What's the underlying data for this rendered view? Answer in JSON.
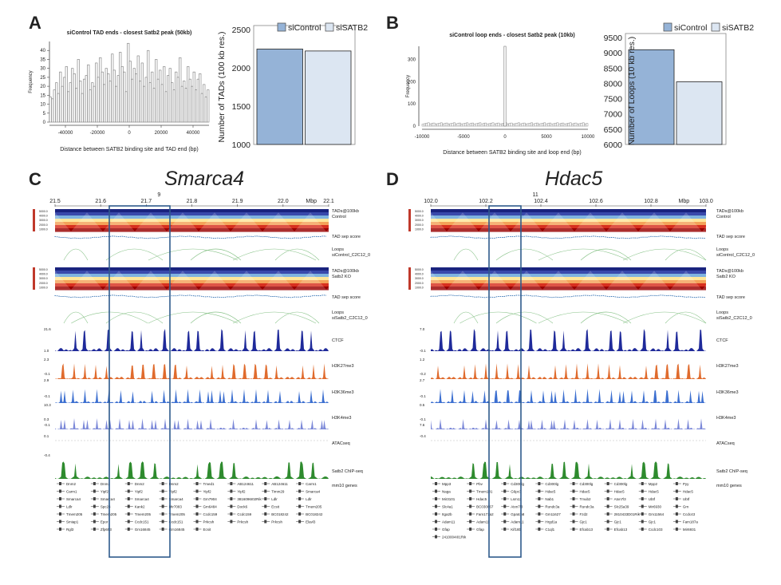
{
  "panels": {
    "A": "A",
    "B": "B",
    "C": "C",
    "D": "D"
  },
  "titles": {
    "C": "Smarca4",
    "D": "Hdac5"
  },
  "chart_data": [
    {
      "type": "bar",
      "id": "A-hist",
      "title": "siControl TAD ends - closest Satb2 peak (50kb)",
      "xlabel": "Distance between SATB2 binding site and TAD end (bp)",
      "ylabel": "Frequency",
      "xlim": [
        -50000,
        50000
      ],
      "ylim": [
        0,
        45
      ],
      "xticks": [
        -40000,
        -20000,
        0,
        20000,
        40000
      ],
      "yticks": [
        0,
        5,
        10,
        15,
        20,
        25,
        30,
        35,
        40
      ],
      "values": [
        14,
        13,
        18,
        22,
        16,
        28,
        20,
        25,
        31,
        17,
        22,
        30,
        27,
        19,
        35,
        23,
        16,
        24,
        26,
        32,
        18,
        22,
        20,
        33,
        25,
        36,
        28,
        21,
        30,
        27,
        23,
        38,
        29,
        20,
        26,
        39,
        31,
        28,
        17,
        44,
        34,
        24,
        30,
        27,
        37,
        23,
        33,
        20,
        25,
        40,
        22,
        28,
        19,
        35,
        24,
        29,
        21,
        31,
        17,
        26,
        30,
        22,
        18,
        28,
        25,
        36,
        20,
        23,
        19,
        31,
        24,
        20,
        28,
        18,
        24,
        27,
        16,
        21,
        14,
        18
      ]
    },
    {
      "type": "bar",
      "id": "A-bars",
      "ylabel": "Number of TADs (100 kb res.)",
      "categories": [
        "siControl",
        "siSATB2"
      ],
      "values": [
        2245,
        2220
      ],
      "ylim": [
        1000,
        2500
      ],
      "yticks": [
        1000,
        1500,
        2000,
        2500
      ],
      "colors": [
        "#95b3d7",
        "#dce6f2"
      ]
    },
    {
      "type": "bar",
      "id": "B-hist",
      "title": "siControl loop ends - closest Satb2 peak (10kb)",
      "xlabel": "Distance between SATB2 binding site and loop end (bp)",
      "ylabel": "Frequency",
      "xlim": [
        -10000,
        10000
      ],
      "ylim": [
        0,
        360
      ],
      "xticks": [
        -10000,
        -5000,
        0,
        5000,
        10000
      ],
      "yticks": [
        0,
        100,
        200,
        300
      ],
      "spike": {
        "x": 0,
        "value": 360
      },
      "baseline": 12
    },
    {
      "type": "bar",
      "id": "B-bars",
      "ylabel": "Number of Loops (10 kb res.)",
      "categories": [
        "siControl",
        "siSATB2"
      ],
      "values": [
        9100,
        8050
      ],
      "ylim": [
        6000,
        9500
      ],
      "yticks": [
        6000,
        6500,
        7000,
        7500,
        8000,
        8500,
        9000,
        9500
      ],
      "colors": [
        "#95b3d7",
        "#dce6f2"
      ]
    }
  ],
  "tracksC": {
    "axis": {
      "ticks": [
        "21.5",
        "21.6",
        "21.7",
        "21.8",
        "21.9",
        "22.0",
        "22.1"
      ],
      "unit": "Mbp",
      "chrom": "9"
    },
    "tad_scale": [
      "5000.0",
      "4000.0",
      "3000.0",
      "2000.0",
      "1000.0"
    ],
    "labels": [
      "TADs@100kb\nControl",
      "TAD sep score",
      "Loops\nsiControl_C2C12_0",
      "TADs@100kb\nSatb2 KO",
      "TAD sep score",
      "Loops\nsiSatb2_C2C12_0",
      "CTCF",
      "H3K27me3",
      "H3K36me3",
      "H3K4me3",
      "ATACseq",
      "Satb2 ChIP-seq",
      "mm10 genes"
    ],
    "sep_scale": [
      "1.0",
      "-0.1",
      "1.4",
      "0.6"
    ],
    "track_scale": [
      "21.6",
      "1.0",
      "2.3",
      "-0.1",
      "2.9",
      "-0.1",
      "10.3",
      "0.3",
      "-0.1",
      "0.1",
      "-0.4"
    ],
    "genes": [
      "Dnm2",
      "Dnm2",
      "Dnm2",
      "Dnm2",
      "Tmed1",
      "AB124611",
      "AB124611",
      "Carm1",
      "Carm1",
      "Yipf2",
      "Yipf2",
      "Yipf2",
      "Yipf2",
      "Yipf2",
      "Timm29",
      "Smarca4",
      "Smarca4",
      "Smarca4",
      "Smarca4",
      "Smarca4",
      "Gm7904",
      "3816096I02Rik",
      "Ldlr",
      "Ldlr",
      "Ldlr",
      "Spc24",
      "Kank2",
      "Mir7083",
      "Gm6484",
      "Dock6",
      "Ecsit",
      "Tmem205",
      "Tmem205",
      "Tmem205",
      "Tmem205",
      "Tmem205",
      "Ccdc159",
      "Ccdc159",
      "BC018242",
      "BC018242",
      "Smiap1",
      "Epor",
      "Ccdc151",
      "Ccdc151",
      "Prkcsh",
      "Prkcsh",
      "Prkcsh",
      "Elavl3",
      "Rgl3",
      "Zfp653",
      "Gm16845",
      "Gm16845",
      "Ecsit"
    ]
  },
  "tracksD": {
    "axis": {
      "ticks": [
        "102.0",
        "102.2",
        "102.4",
        "102.6",
        "102.8",
        "103.0"
      ],
      "unit": "Mbp",
      "chrom": "11"
    },
    "tad_scale": [
      "5000.0",
      "4000.0",
      "3000.0",
      "2000.0",
      "1000.0"
    ],
    "labels": [
      "TADs@100kb\nControl",
      "TAD sep score",
      "Loops\nsiControl_C2C12_0",
      "TADs@100kb\nSatb2 KO",
      "TAD sep score",
      "Loops\nsiSatb2_C2C12_0",
      "CTCF",
      "H3K27me3",
      "H3K36me3",
      "H3K4me3",
      "ATACseq",
      "Satb2 ChIP-seq",
      "mm10 genes"
    ],
    "sep_scale": [
      "1.5",
      "-0.6",
      "1.5",
      "-0.6"
    ],
    "track_scale": [
      "7.0",
      "-0.1",
      "1.2",
      "-0.2",
      "2.7",
      "-0.1",
      "0.5",
      "-0.1",
      "7.6",
      "-0.4"
    ],
    "genes": [
      "Mpp3",
      "Pbv",
      "Cd300lg",
      "Cd300lg",
      "Cd300lg",
      "Cd300lg",
      "Mpp2",
      "Pyy",
      "Naga",
      "Tmem101",
      "G6pc3",
      "Hdac5",
      "Hdac5",
      "Hdac5",
      "Hdac5",
      "Hdac5",
      "Mir3101",
      "Hdac5",
      "Lsm12",
      "Nab1",
      "Tmub2",
      "Atxn7l3",
      "Ubtf",
      "Ubtf",
      "Slc4a1",
      "BC030867",
      "Atxn7l3",
      "Rundc3a",
      "Rundc3a",
      "Slc25a39",
      "Mir6930",
      "Grn",
      "Itga2b",
      "Fam171a2",
      "Gpatch8",
      "Gm11627",
      "Fzd2",
      "2810433D01Rik",
      "Gm11564",
      "Ccdc43",
      "Adam11",
      "Adam11",
      "Adam11",
      "Hrgd1a",
      "Gjc1",
      "Gjc1",
      "Gjc1",
      "Fam187a",
      "Gfap",
      "Gfap",
      "Kif18b",
      "C1ql1",
      "Efcab13",
      "Efcab13",
      "Ccdc103",
      "Mir6931",
      "2410004I01Rik"
    ]
  }
}
